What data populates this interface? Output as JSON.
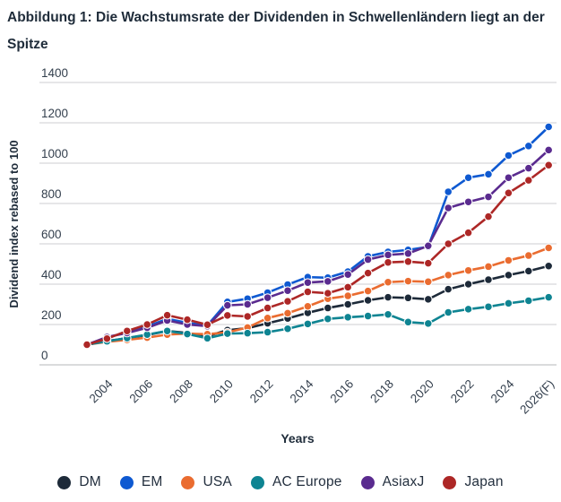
{
  "title": "Abbildung 1: Die Wachstumsrate der Dividenden in Schwellenländern liegt an der Spitze",
  "chart_data": {
    "type": "line",
    "title": "Abbildung 1: Die Wachstumsrate der Dividenden in Schwellenländern liegt an der Spitze",
    "xlabel": "Years",
    "ylabel": "Dividend index rebased to 100",
    "ylim": [
      0,
      1400
    ],
    "ytick_step": 200,
    "ytick_labels": [
      "0",
      "200",
      "400",
      "600",
      "800",
      "1000",
      "1200",
      "1400"
    ],
    "grid": true,
    "legend_position": "bottom",
    "x": [
      2003,
      2004,
      2005,
      2006,
      2007,
      2008,
      2009,
      2010,
      2011,
      2012,
      2013,
      2014,
      2015,
      2016,
      2017,
      2018,
      2019,
      2020,
      2021,
      2022,
      2023,
      2024,
      2025,
      2026
    ],
    "xtick_labels": [
      "2004",
      "2006",
      "2008",
      "2010",
      "2012",
      "2014",
      "2016",
      "2018",
      "2020",
      "2022",
      "2024",
      "2026(F)"
    ],
    "series": [
      {
        "name": "DM",
        "color": "#1d2a39",
        "values": [
          100,
          118,
          132,
          148,
          168,
          158,
          142,
          172,
          182,
          206,
          230,
          258,
          282,
          300,
          320,
          335,
          332,
          325,
          375,
          400,
          422,
          445,
          465,
          490
        ]
      },
      {
        "name": "EM",
        "color": "#0e59d1",
        "values": [
          100,
          135,
          162,
          190,
          228,
          208,
          195,
          312,
          328,
          358,
          398,
          435,
          432,
          462,
          538,
          560,
          570,
          585,
          858,
          928,
          945,
          1038,
          1085,
          1180
        ]
      },
      {
        "name": "USA",
        "color": "#ea6c30",
        "values": [
          100,
          114,
          124,
          135,
          150,
          155,
          152,
          161,
          185,
          232,
          256,
          290,
          328,
          342,
          366,
          410,
          415,
          412,
          445,
          468,
          487,
          518,
          542,
          580
        ]
      },
      {
        "name": "AC Europe",
        "color": "#0e8492",
        "values": [
          100,
          117,
          133,
          150,
          168,
          153,
          132,
          155,
          157,
          162,
          179,
          203,
          228,
          236,
          242,
          250,
          212,
          205,
          260,
          276,
          288,
          305,
          318,
          335
        ]
      },
      {
        "name": "AsiaxJ",
        "color": "#5a2b8f",
        "values": [
          100,
          138,
          158,
          184,
          220,
          200,
          192,
          295,
          300,
          333,
          368,
          408,
          414,
          448,
          522,
          545,
          552,
          590,
          778,
          808,
          833,
          928,
          975,
          1065
        ]
      },
      {
        "name": "Japan",
        "color": "#ad2726",
        "values": [
          100,
          130,
          168,
          200,
          246,
          224,
          199,
          245,
          240,
          282,
          315,
          362,
          355,
          385,
          455,
          508,
          512,
          504,
          600,
          655,
          735,
          852,
          915,
          990
        ]
      }
    ]
  },
  "colors": {
    "title_text": "#1f2c3a",
    "tick_text": "#333f4d",
    "gridline": "#d6d8da",
    "baseline": "#c3c5c7",
    "background": "#ffffff"
  }
}
